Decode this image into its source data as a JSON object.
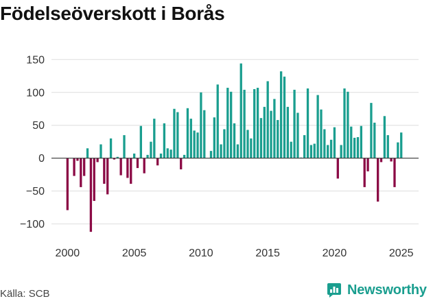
{
  "title": "Födelseöverskott i Borås",
  "source": "Källa: SCB",
  "brand": {
    "name": "Newsworthy",
    "icon": "newsworthy-chart-icon"
  },
  "colors": {
    "positive": "#1a9e8f",
    "negative": "#8b0a45",
    "grid": "#dddddd",
    "zero_line": "#333333",
    "brand": "#1a9e8f"
  },
  "chart_data": {
    "type": "bar",
    "title": "Födelseöverskott i Borås",
    "xlabel": "",
    "ylabel": "",
    "frequency": "monthly",
    "x_start": 2000.0,
    "x_step": 0.25,
    "xlim": [
      1998.8,
      2026.3
    ],
    "ylim": [
      -115,
      155
    ],
    "yticks": [
      -100,
      -50,
      0,
      50,
      100,
      150
    ],
    "ytick_labels": [
      "−100",
      "−50",
      "0",
      "50",
      "100",
      "150"
    ],
    "xticks": [
      2000,
      2005,
      2010,
      2015,
      2020,
      2025
    ],
    "xtick_labels": [
      "2000",
      "2005",
      "2010",
      "2015",
      "2020",
      "2025"
    ],
    "grid": true,
    "values": [
      -79,
      0,
      -27,
      -4,
      -44,
      -27,
      15,
      -112,
      -65,
      -6,
      21,
      -39,
      -55,
      30,
      -2,
      2,
      -26,
      35,
      -30,
      -39,
      7,
      -15,
      49,
      -23,
      5,
      25,
      60,
      -11,
      7,
      53,
      15,
      13,
      75,
      70,
      -17,
      5,
      76,
      60,
      42,
      39,
      100,
      73,
      0,
      11,
      62,
      112,
      21,
      44,
      107,
      101,
      53,
      21,
      144,
      104,
      43,
      30,
      105,
      107,
      61,
      78,
      117,
      72,
      90,
      58,
      132,
      124,
      78,
      25,
      104,
      69,
      1,
      35,
      106,
      20,
      22,
      96,
      74,
      44,
      20,
      28,
      47,
      -31,
      20,
      106,
      101,
      48,
      31,
      32,
      49,
      -44,
      -20,
      84,
      54,
      -66,
      -6,
      64,
      35,
      -5,
      -44,
      24,
      39
    ]
  }
}
